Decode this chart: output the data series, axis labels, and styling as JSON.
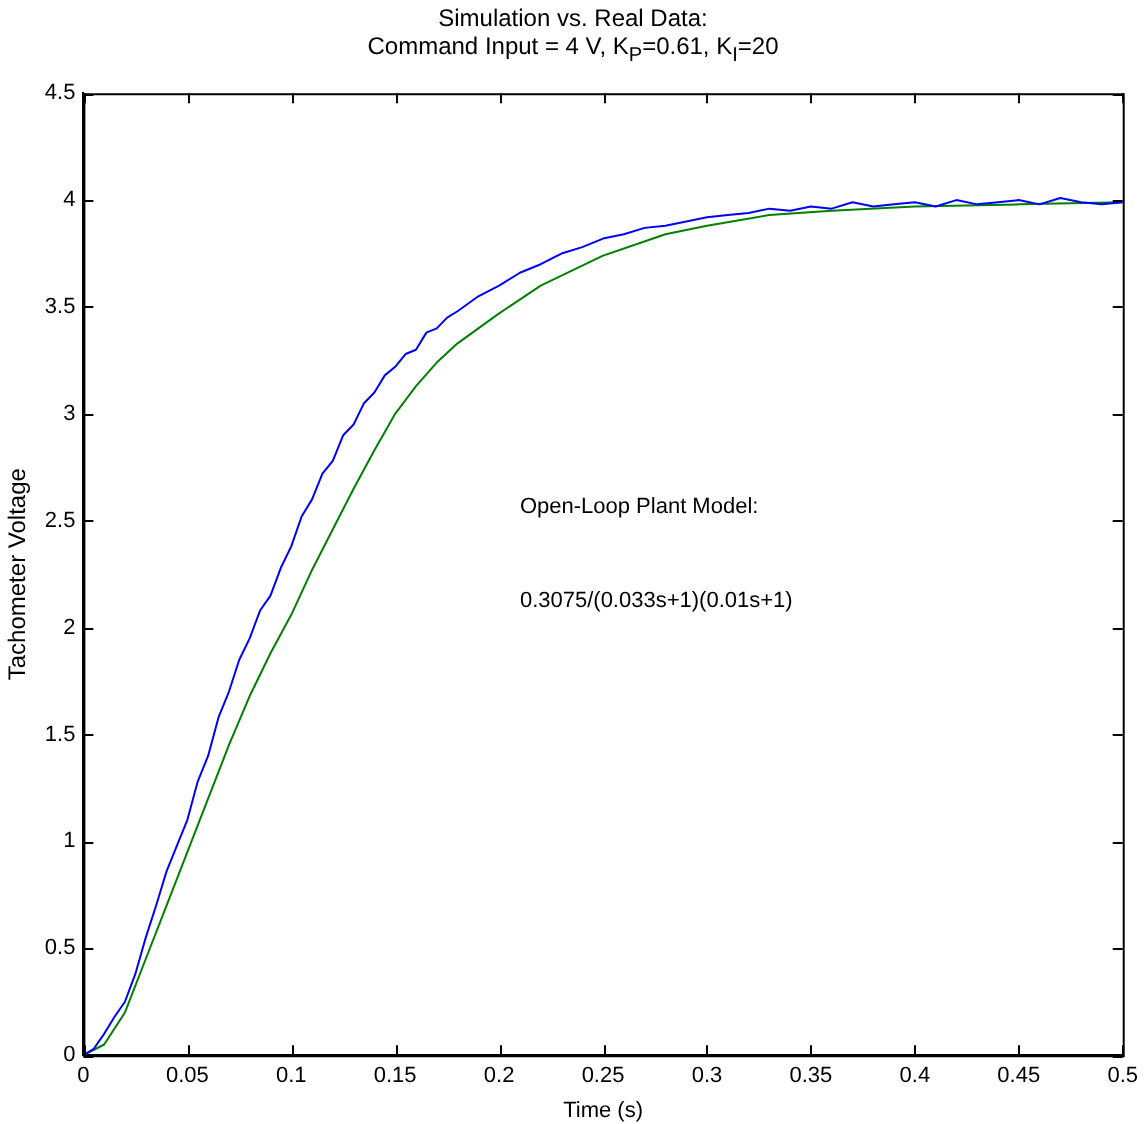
{
  "chart_data": {
    "type": "line",
    "title": "Simulation vs. Real Data:",
    "subtitle": "Command Input = 4 V,  K$_{P}$=0.61, K$_{I}$=20",
    "xlabel": "Time (s)",
    "ylabel": "Tachometer Voltage",
    "annotations": [
      "Open-Loop Plant Model:",
      "0.3075/(0.033s+1)(0.01s+1)"
    ],
    "xlim": [
      0,
      0.5
    ],
    "xticks": [
      0,
      0.05,
      0.1,
      0.15,
      0.2,
      0.25,
      0.3,
      0.35,
      0.4,
      0.45,
      0.5
    ],
    "ylim": [
      0,
      4.5
    ],
    "yticks": [
      0,
      0.5,
      1,
      1.5,
      2,
      2.5,
      3,
      3.5,
      4,
      4.5
    ],
    "grid": false,
    "legend": false,
    "marker": "none",
    "line_style": "solid",
    "series": [
      {
        "color": "#0000ff",
        "x": [
          0,
          0.005,
          0.01,
          0.015,
          0.02,
          0.025,
          0.03,
          0.035,
          0.04,
          0.045,
          0.05,
          0.055,
          0.06,
          0.065,
          0.07,
          0.075,
          0.08,
          0.085,
          0.09,
          0.095,
          0.1,
          0.105,
          0.11,
          0.115,
          0.12,
          0.125,
          0.13,
          0.135,
          0.14,
          0.145,
          0.15,
          0.155,
          0.16,
          0.165,
          0.17,
          0.175,
          0.18,
          0.19,
          0.2,
          0.21,
          0.22,
          0.23,
          0.24,
          0.25,
          0.26,
          0.27,
          0.28,
          0.29,
          0.3,
          0.31,
          0.32,
          0.33,
          0.34,
          0.35,
          0.36,
          0.37,
          0.38,
          0.39,
          0.4,
          0.41,
          0.42,
          0.43,
          0.44,
          0.45,
          0.46,
          0.47,
          0.48,
          0.49,
          0.5
        ],
        "values": [
          0,
          0.03,
          0.1,
          0.18,
          0.25,
          0.38,
          0.55,
          0.7,
          0.86,
          0.98,
          1.1,
          1.28,
          1.4,
          1.58,
          1.7,
          1.85,
          1.95,
          2.08,
          2.15,
          2.28,
          2.38,
          2.52,
          2.6,
          2.72,
          2.78,
          2.9,
          2.95,
          3.05,
          3.1,
          3.18,
          3.22,
          3.28,
          3.3,
          3.38,
          3.4,
          3.45,
          3.48,
          3.55,
          3.6,
          3.66,
          3.7,
          3.75,
          3.78,
          3.82,
          3.84,
          3.87,
          3.88,
          3.9,
          3.92,
          3.93,
          3.94,
          3.96,
          3.95,
          3.97,
          3.96,
          3.99,
          3.97,
          3.98,
          3.99,
          3.97,
          4.0,
          3.98,
          3.99,
          4.0,
          3.98,
          4.01,
          3.99,
          3.98,
          3.99
        ]
      },
      {
        "color": "#008000",
        "x": [
          0,
          0.01,
          0.02,
          0.03,
          0.04,
          0.05,
          0.06,
          0.07,
          0.08,
          0.09,
          0.1,
          0.11,
          0.12,
          0.13,
          0.14,
          0.15,
          0.16,
          0.17,
          0.18,
          0.19,
          0.2,
          0.22,
          0.25,
          0.28,
          0.3,
          0.33,
          0.36,
          0.4,
          0.45,
          0.5
        ],
        "values": [
          0,
          0.05,
          0.2,
          0.45,
          0.7,
          0.95,
          1.2,
          1.45,
          1.68,
          1.88,
          2.06,
          2.27,
          2.46,
          2.65,
          2.83,
          3.0,
          3.13,
          3.24,
          3.33,
          3.4,
          3.47,
          3.6,
          3.74,
          3.84,
          3.88,
          3.93,
          3.95,
          3.97,
          3.98,
          3.99
        ]
      }
    ]
  }
}
